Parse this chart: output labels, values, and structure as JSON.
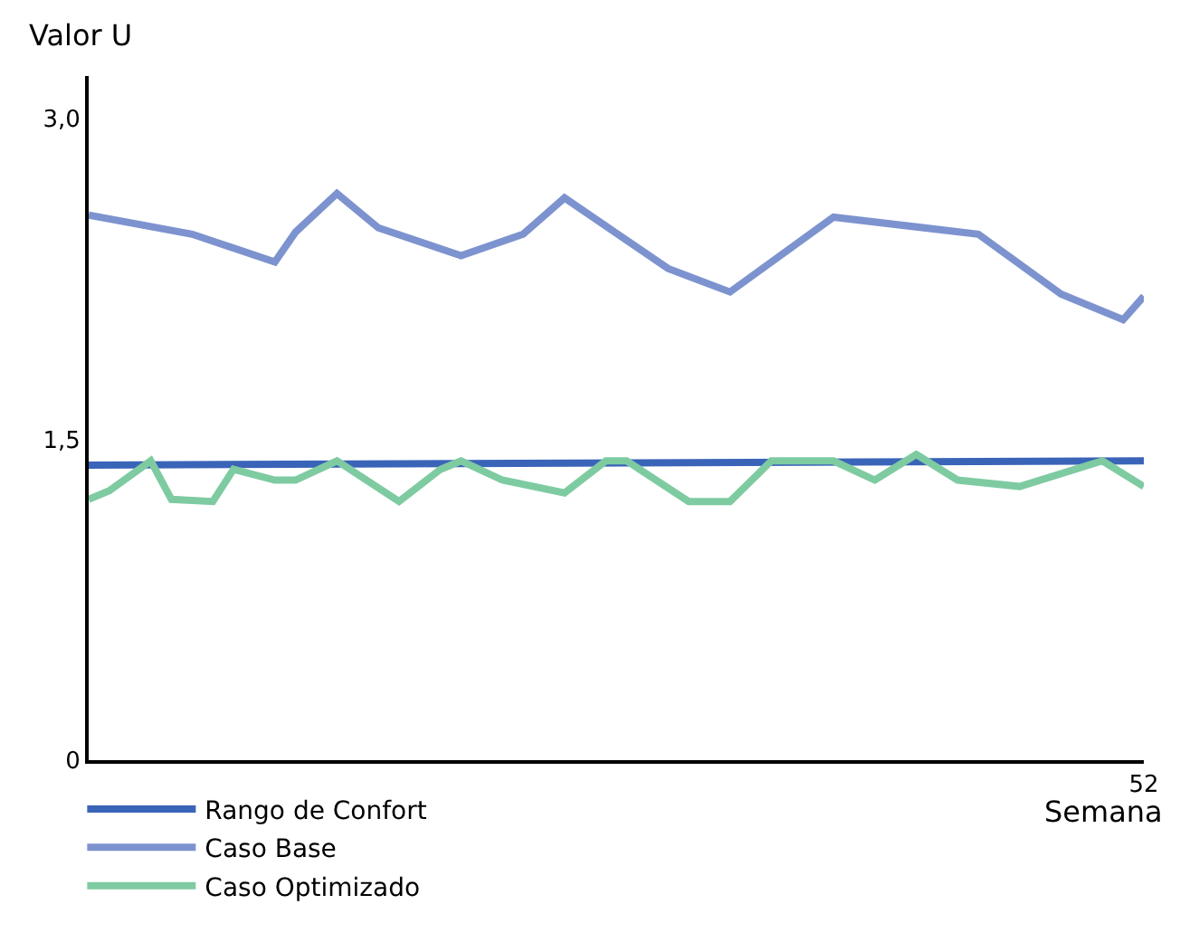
{
  "chart_data": {
    "type": "line",
    "ylabel": "Valor U",
    "xlabel": "Semana",
    "categories": [
      null,
      null,
      null,
      null,
      null,
      null,
      null,
      null,
      null,
      null,
      null,
      null,
      null,
      null,
      null,
      null,
      null,
      null,
      null,
      null,
      null,
      null,
      null,
      null,
      null,
      null,
      null,
      null,
      null,
      null,
      null,
      null,
      null,
      null,
      null,
      null,
      null,
      null,
      null,
      null,
      null,
      null,
      null,
      null,
      null,
      null,
      null,
      null,
      null,
      null,
      null,
      "52"
    ],
    "ylim": [
      0,
      3.2
    ],
    "yticks": [
      {
        "value": 0,
        "label": "0"
      },
      {
        "value": 1.5,
        "label": "1,5"
      },
      {
        "value": 3,
        "label": "3,0"
      }
    ],
    "legend": "bottom",
    "marker": "none",
    "line_style": "solid",
    "series": [
      {
        "name": "Rango de Confort",
        "color": "#3a64b8",
        "values": [
          1.38,
          null,
          null,
          null,
          null,
          null,
          null,
          null,
          null,
          null,
          null,
          null,
          null,
          null,
          null,
          null,
          null,
          null,
          null,
          null,
          null,
          null,
          null,
          null,
          null,
          null,
          null,
          null,
          null,
          null,
          null,
          null,
          null,
          null,
          null,
          null,
          null,
          null,
          null,
          null,
          null,
          null,
          null,
          null,
          null,
          null,
          null,
          null,
          null,
          null,
          null,
          1.4
        ]
      },
      {
        "name": "Caso Base",
        "color": "#7d93cf",
        "values": [
          2.55,
          null,
          null,
          null,
          null,
          2.46,
          null,
          null,
          null,
          2.33,
          2.47,
          null,
          2.65,
          null,
          2.49,
          null,
          null,
          null,
          2.36,
          null,
          null,
          2.46,
          null,
          2.63,
          null,
          null,
          null,
          null,
          2.3,
          null,
          null,
          2.19,
          null,
          null,
          null,
          null,
          2.54,
          null,
          null,
          null,
          null,
          null,
          null,
          2.46,
          null,
          null,
          null,
          2.18,
          null,
          null,
          2.06,
          2.17
        ]
      },
      {
        "name": "Caso Optimizado",
        "color": "#7ecba1",
        "values": [
          1.22,
          1.26,
          null,
          1.4,
          1.22,
          null,
          1.21,
          1.36,
          null,
          1.31,
          1.31,
          null,
          1.4,
          null,
          null,
          1.21,
          null,
          1.36,
          1.4,
          null,
          1.31,
          null,
          null,
          1.25,
          null,
          1.4,
          1.4,
          null,
          null,
          1.21,
          null,
          1.21,
          null,
          1.4,
          null,
          null,
          1.4,
          null,
          1.31,
          null,
          1.43,
          null,
          1.31,
          null,
          null,
          1.28,
          null,
          null,
          null,
          1.4,
          null,
          1.28
        ]
      }
    ]
  }
}
